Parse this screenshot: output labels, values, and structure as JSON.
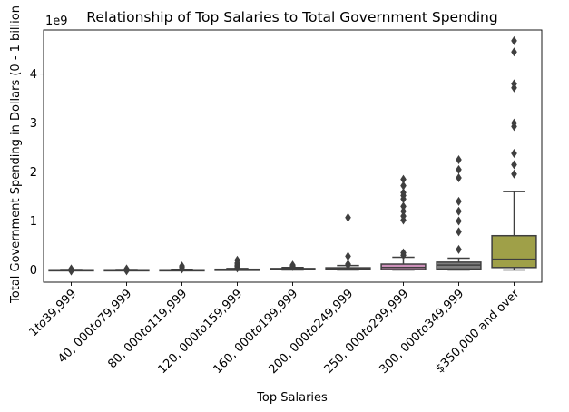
{
  "chart_data": {
    "type": "box",
    "title": "Relationship of Top Salaries to Total Government Spending",
    "xlabel": "Top Salaries",
    "ylabel": "Total Government Spending in Dollars (0 - 1 billion",
    "offset_label": "1e9",
    "y_scale": 1000000000,
    "ylim": [
      -0.25,
      4.9
    ],
    "yticks": [
      0,
      1,
      2,
      3,
      4
    ],
    "grid": false,
    "categories": [
      {
        "label": "$1 to $39,999",
        "display": {
          "pre": "1",
          "mid": "to",
          "post": "39,999"
        },
        "color": "#3274a1",
        "q1": -0.005,
        "median": 0,
        "q3": 0.005,
        "whislo": -0.01,
        "whishi": 0.01,
        "fliers": [
          -0.02,
          0.0,
          0.02
        ]
      },
      {
        "label": "$40,000 to $79,999",
        "display": {
          "pre": "40, 000",
          "mid": "to",
          "post": "79,999"
        },
        "color": "#e1812c",
        "q1": -0.005,
        "median": 0,
        "q3": 0.005,
        "whislo": -0.01,
        "whishi": 0.01,
        "fliers": [
          -0.015,
          0.0,
          0.02
        ]
      },
      {
        "label": "$80,000 to $119,999",
        "display": {
          "pre": "80, 000",
          "mid": "to",
          "post": "119,999"
        },
        "color": "#3a923a",
        "q1": -0.005,
        "median": 0,
        "q3": 0.005,
        "whislo": -0.01,
        "whishi": 0.015,
        "fliers": [
          0.02,
          0.05,
          0.08
        ]
      },
      {
        "label": "$120,000 to $159,999",
        "display": {
          "pre": "120, 000",
          "mid": "to",
          "post": "159,999"
        },
        "color": "#c03d3e",
        "q1": 0,
        "median": 0.005,
        "q3": 0.015,
        "whislo": -0.005,
        "whishi": 0.03,
        "fliers": [
          0.04,
          0.07,
          0.1,
          0.14,
          0.2
        ]
      },
      {
        "label": "$160,000 to $199,999",
        "display": {
          "pre": "160, 000",
          "mid": "to",
          "post": "199,999"
        },
        "color": "#9372b2",
        "q1": 0.005,
        "median": 0.015,
        "q3": 0.03,
        "whislo": 0,
        "whishi": 0.05,
        "fliers": [
          0.07,
          0.1
        ]
      },
      {
        "label": "$200,000 to $249,999",
        "display": {
          "pre": "200, 000",
          "mid": "to",
          "post": "249,999"
        },
        "color": "#845b53",
        "q1": 0.005,
        "median": 0.02,
        "q3": 0.045,
        "whislo": 0,
        "whishi": 0.09,
        "fliers": [
          0.1,
          0.12,
          0.28,
          1.07
        ]
      },
      {
        "label": "$250,000 to $299,999",
        "display": {
          "pre": "250, 000",
          "mid": "to",
          "post": "299,999"
        },
        "color": "#d684bd",
        "q1": 0.01,
        "median": 0.05,
        "q3": 0.12,
        "whislo": 0,
        "whishi": 0.26,
        "fliers": [
          0.3,
          0.35,
          1.02,
          1.1,
          1.2,
          1.3,
          1.45,
          1.52,
          1.58,
          1.72,
          1.85
        ]
      },
      {
        "label": "$300,000 to $349,999",
        "display": {
          "pre": "300, 000",
          "mid": "to",
          "post": "349,999"
        },
        "color": "#7f7f7f",
        "q1": 0.02,
        "median": 0.1,
        "q3": 0.16,
        "whislo": 0,
        "whishi": 0.24,
        "fliers": [
          0.42,
          0.78,
          1.0,
          1.2,
          1.4,
          1.88,
          2.05,
          2.25
        ]
      },
      {
        "label": "$350,000 and over",
        "display": {
          "pre": "$350,000 and over",
          "mid": "",
          "post": ""
        },
        "color": "#a9aa35",
        "q1": 0.05,
        "median": 0.22,
        "q3": 0.7,
        "whislo": 0,
        "whishi": 1.6,
        "fliers": [
          1.96,
          2.15,
          2.38,
          2.93,
          3.0,
          3.72,
          3.8,
          4.45,
          4.68
        ]
      }
    ]
  }
}
